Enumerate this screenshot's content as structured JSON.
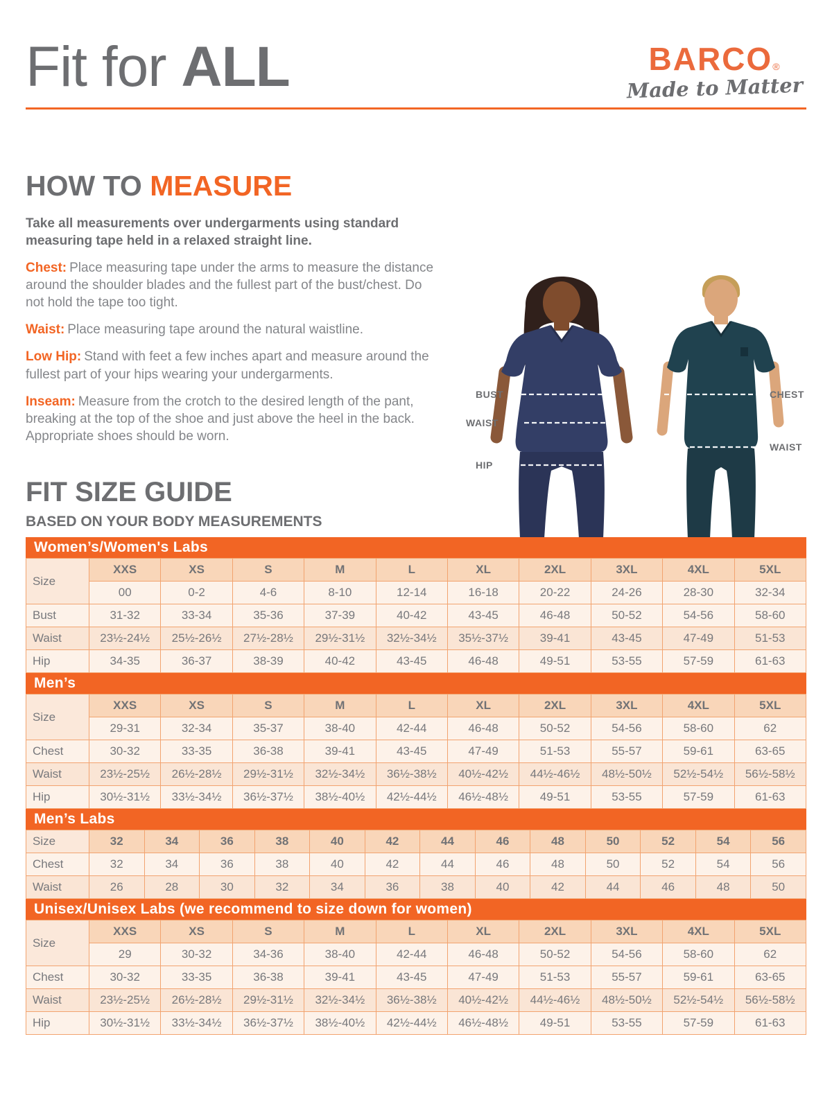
{
  "header": {
    "title_light": "Fit for ",
    "title_bold": "ALL",
    "logo_brand": "BARCO",
    "logo_registered": "®",
    "logo_tagline": "Made to Matter"
  },
  "how_to_measure": {
    "title_gray": "HOW TO ",
    "title_accent": "MEASURE",
    "intro": "Take all measurements over undergarments using standard measuring tape held in a relaxed straight line.",
    "items": [
      {
        "term": "Chest:",
        "text": "Place measuring tape under the arms to measure the distance around the shoulder blades and the fullest part of the bust/chest. Do not hold the tape too tight."
      },
      {
        "term": "Waist:",
        "text": "Place measuring tape around the natural waistline."
      },
      {
        "term": "Low Hip:",
        "text": "Stand with feet a few inches apart and measure around the fullest part of your hips wearing your undergarments."
      },
      {
        "term": "Inseam:",
        "text": "Measure from the crotch to the desired length of the pant, breaking at the top of the shoe and just above the heel in the back. Appropriate shoes should be worn."
      }
    ]
  },
  "figure_labels": {
    "woman": [
      "BUST",
      "WAIST",
      "HIP"
    ],
    "man": [
      "CHEST",
      "WAIST"
    ]
  },
  "size_guide": {
    "title": "FIT SIZE GUIDE",
    "subtitle": "BASED ON YOUR BODY MEASUREMENTS",
    "tables": [
      {
        "title": "Women’s/Women's Labs",
        "header_label": "Size",
        "header_values": [
          "XXS",
          "XS",
          "S",
          "M",
          "L",
          "XL",
          "2XL",
          "3XL",
          "4XL",
          "5XL"
        ],
        "subheader_values": [
          "00",
          "0-2",
          "4-6",
          "8-10",
          "12-14",
          "16-18",
          "20-22",
          "24-26",
          "28-30",
          "32-34"
        ],
        "rows": [
          {
            "label": "Bust",
            "values": [
              "31-32",
              "33-34",
              "35-36",
              "37-39",
              "40-42",
              "43-45",
              "46-48",
              "50-52",
              "54-56",
              "58-60"
            ]
          },
          {
            "label": "Waist",
            "values": [
              "23½-24½",
              "25½-26½",
              "27½-28½",
              "29½-31½",
              "32½-34½",
              "35½-37½",
              "39-41",
              "43-45",
              "47-49",
              "51-53"
            ]
          },
          {
            "label": "Hip",
            "values": [
              "34-35",
              "36-37",
              "38-39",
              "40-42",
              "43-45",
              "46-48",
              "49-51",
              "53-55",
              "57-59",
              "61-63"
            ]
          }
        ]
      },
      {
        "title": "Men’s",
        "header_label": "Size",
        "header_values": [
          "XXS",
          "XS",
          "S",
          "M",
          "L",
          "XL",
          "2XL",
          "3XL",
          "4XL",
          "5XL"
        ],
        "subheader_values": [
          "29-31",
          "32-34",
          "35-37",
          "38-40",
          "42-44",
          "46-48",
          "50-52",
          "54-56",
          "58-60",
          "62"
        ],
        "rows": [
          {
            "label": "Chest",
            "values": [
              "30-32",
              "33-35",
              "36-38",
              "39-41",
              "43-45",
              "47-49",
              "51-53",
              "55-57",
              "59-61",
              "63-65"
            ]
          },
          {
            "label": "Waist",
            "values": [
              "23½-25½",
              "26½-28½",
              "29½-31½",
              "32½-34½",
              "36½-38½",
              "40½-42½",
              "44½-46½",
              "48½-50½",
              "52½-54½",
              "56½-58½"
            ]
          },
          {
            "label": "Hip",
            "values": [
              "30½-31½",
              "33½-34½",
              "36½-37½",
              "38½-40½",
              "42½-44½",
              "46½-48½",
              "49-51",
              "53-55",
              "57-59",
              "61-63"
            ]
          }
        ]
      },
      {
        "title": "Men’s Labs",
        "header_label": "Size",
        "header_values": [
          "32",
          "34",
          "36",
          "38",
          "40",
          "42",
          "44",
          "46",
          "48",
          "50",
          "52",
          "54",
          "56"
        ],
        "subheader_values": null,
        "rows": [
          {
            "label": "Chest",
            "values": [
              "32",
              "34",
              "36",
              "38",
              "40",
              "42",
              "44",
              "46",
              "48",
              "50",
              "52",
              "54",
              "56"
            ]
          },
          {
            "label": "Waist",
            "values": [
              "26",
              "28",
              "30",
              "32",
              "34",
              "36",
              "38",
              "40",
              "42",
              "44",
              "46",
              "48",
              "50"
            ]
          }
        ]
      },
      {
        "title": "Unisex/Unisex Labs (we recommend to size down for women)",
        "header_label": "Size",
        "header_values": [
          "XXS",
          "XS",
          "S",
          "M",
          "L",
          "XL",
          "2XL",
          "3XL",
          "4XL",
          "5XL"
        ],
        "subheader_values": [
          "29",
          "30-32",
          "34-36",
          "38-40",
          "42-44",
          "46-48",
          "50-52",
          "54-56",
          "58-60",
          "62"
        ],
        "rows": [
          {
            "label": "Chest",
            "values": [
              "30-32",
              "33-35",
              "36-38",
              "39-41",
              "43-45",
              "47-49",
              "51-53",
              "55-57",
              "59-61",
              "63-65"
            ]
          },
          {
            "label": "Waist",
            "values": [
              "23½-25½",
              "26½-28½",
              "29½-31½",
              "32½-34½",
              "36½-38½",
              "40½-42½",
              "44½-46½",
              "48½-50½",
              "52½-54½",
              "56½-58½"
            ]
          },
          {
            "label": "Hip",
            "values": [
              "30½-31½",
              "33½-34½",
              "36½-37½",
              "38½-40½",
              "42½-44½",
              "46½-48½",
              "49-51",
              "53-55",
              "57-59",
              "61-63"
            ]
          }
        ]
      }
    ]
  },
  "colors": {
    "accent_orange": "#F26524",
    "logo_orange": "#EB6A3C",
    "heading_gray": "#6D6E71",
    "woman_scrub_navy": "#333E66",
    "man_scrub_teal": "#20424F"
  }
}
